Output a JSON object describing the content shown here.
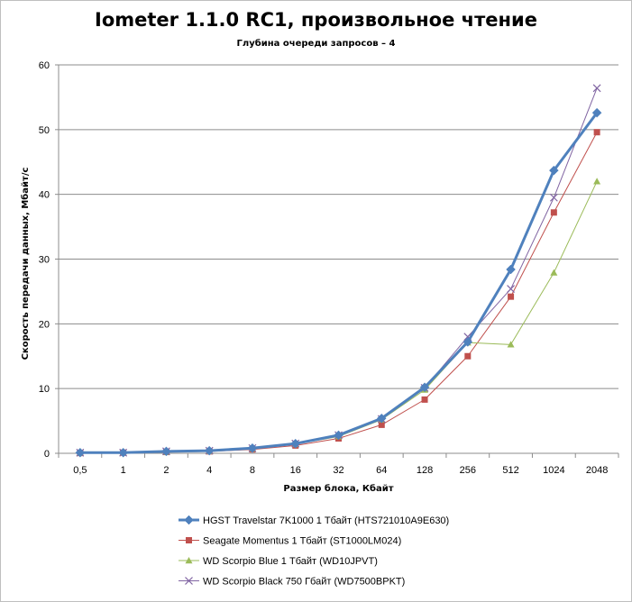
{
  "chart_data": {
    "type": "line",
    "title": "Iometer 1.1.0 RC1, произвольное чтение",
    "subtitle": "Глубина очереди запросов – 4",
    "xlabel": "Размер блока, Кбайт",
    "ylabel": "Скорость передачи данных, Мбайт/с",
    "categories": [
      "0,5",
      "1",
      "2",
      "4",
      "8",
      "16",
      "32",
      "64",
      "128",
      "256",
      "512",
      "1024",
      "2048"
    ],
    "ylim": [
      0,
      60
    ],
    "yticks": [
      0,
      10,
      20,
      30,
      40,
      50,
      60
    ],
    "grid": true,
    "legend_position": "bottom",
    "series": [
      {
        "name": "HGST Travelstar 7K1000 1 Тбайт (HTS721010A9E630)",
        "color": "#4f81bd",
        "marker": "diamond",
        "width": 3,
        "values": [
          0.1,
          0.1,
          0.3,
          0.4,
          0.8,
          1.5,
          2.8,
          5.4,
          10.2,
          17.2,
          28.4,
          43.7,
          52.6
        ]
      },
      {
        "name": "Seagate Momentus 1 Тбайт  (ST1000LM024)",
        "color": "#c0504d",
        "marker": "square",
        "width": 1,
        "values": [
          0.05,
          0.1,
          0.2,
          0.3,
          0.6,
          1.2,
          2.3,
          4.4,
          8.3,
          15.0,
          24.2,
          37.2,
          49.6
        ]
      },
      {
        "name": "WD Scorpio Blue 1 Тбайт (WD10JPVT)",
        "color": "#9bbb59",
        "marker": "triangle",
        "width": 1,
        "values": [
          0.05,
          0.1,
          0.2,
          0.3,
          0.7,
          1.4,
          2.6,
          5.2,
          9.8,
          17.1,
          16.8,
          27.9,
          42.0
        ]
      },
      {
        "name": "WD Scorpio Black 750 Гбайт (WD7500BPKT)",
        "color": "#8064a2",
        "marker": "x",
        "width": 1,
        "values": [
          0.1,
          0.1,
          0.3,
          0.4,
          0.8,
          1.5,
          2.8,
          5.3,
          10.1,
          18.0,
          25.4,
          39.5,
          56.4
        ]
      }
    ]
  }
}
